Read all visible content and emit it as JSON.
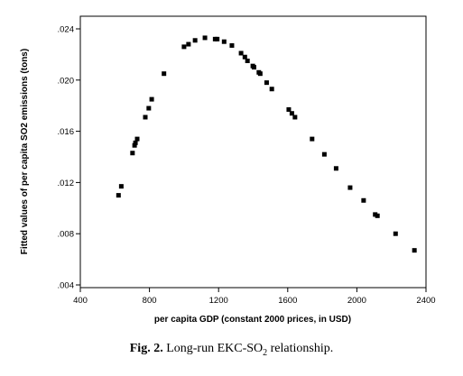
{
  "chart_data": {
    "type": "scatter",
    "title": "",
    "xlabel": "per capita GDP (constant 2000 prices, in USD)",
    "ylabel": "Fitted values of per capita SO2 emissions (tons)",
    "xlim": [
      400,
      2400
    ],
    "ylim": [
      0.004,
      0.024
    ],
    "x_ticks": [
      400,
      800,
      1200,
      1600,
      2000,
      2400
    ],
    "x_tick_labels": [
      "400",
      "800",
      "1200",
      "1600",
      "2000",
      "2400"
    ],
    "y_ticks": [
      0.004,
      0.008,
      0.012,
      0.016,
      0.02,
      0.024
    ],
    "y_tick_labels": [
      ".004",
      ".008",
      ".012",
      ".016",
      ".020",
      ".024"
    ],
    "grid": false,
    "marker": "square",
    "color": "#000000",
    "points": [
      [
        621,
        0.011
      ],
      [
        637,
        0.0117
      ],
      [
        702,
        0.0143
      ],
      [
        714,
        0.0149
      ],
      [
        719,
        0.0151
      ],
      [
        729,
        0.0154
      ],
      [
        776,
        0.0171
      ],
      [
        796,
        0.0178
      ],
      [
        813,
        0.0185
      ],
      [
        884,
        0.0205
      ],
      [
        1000,
        0.0226
      ],
      [
        1026,
        0.0228
      ],
      [
        1064,
        0.0231
      ],
      [
        1121,
        0.0233
      ],
      [
        1180,
        0.0232
      ],
      [
        1192,
        0.0232
      ],
      [
        1232,
        0.023
      ],
      [
        1277,
        0.0227
      ],
      [
        1330,
        0.0221
      ],
      [
        1352,
        0.0218
      ],
      [
        1367,
        0.0215
      ],
      [
        1398,
        0.0211
      ],
      [
        1405,
        0.021
      ],
      [
        1433,
        0.0206
      ],
      [
        1441,
        0.0205
      ],
      [
        1478,
        0.0198
      ],
      [
        1508,
        0.0193
      ],
      [
        1606,
        0.0177
      ],
      [
        1624,
        0.0174
      ],
      [
        1642,
        0.0171
      ],
      [
        1741,
        0.0154
      ],
      [
        1812,
        0.0142
      ],
      [
        1880,
        0.0131
      ],
      [
        1961,
        0.0116
      ],
      [
        2039,
        0.0106
      ],
      [
        2106,
        0.0095
      ],
      [
        2119,
        0.0094
      ],
      [
        2224,
        0.008
      ],
      [
        2333,
        0.0067
      ]
    ]
  },
  "caption": {
    "label": "Fig. 2.",
    "text_before": " Long-run EKC-SO",
    "subscript": "2",
    "text_after": " relationship."
  }
}
